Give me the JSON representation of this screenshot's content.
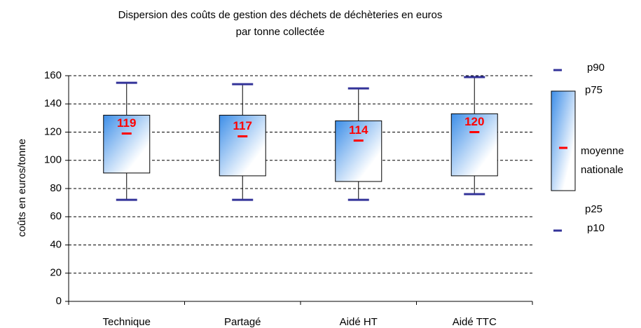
{
  "chart_data": {
    "type": "box",
    "title": [
      "Dispersion des coûts de gestion des déchets de déchèteries en euros",
      "par tonne collectée"
    ],
    "y_label": "coûts en euros/tonne",
    "categories": [
      "Technique",
      "Partagé",
      "Aidé HT",
      "Aidé TTC"
    ],
    "p10": [
      72,
      72,
      72,
      76
    ],
    "p25": [
      91,
      89,
      85,
      89
    ],
    "mean": [
      119,
      117,
      114,
      120
    ],
    "p75": [
      132,
      132,
      128,
      133
    ],
    "p90": [
      155,
      154,
      151,
      159
    ],
    "ylim": [
      0,
      160
    ],
    "yticks": [
      0,
      20,
      40,
      60,
      80,
      100,
      120,
      140,
      160
    ],
    "grid": true,
    "whisker_color": "#333399",
    "mean_color": "#ff0000",
    "box_color": "#3d8ee8",
    "legend": {
      "p90": "p90",
      "p75": "p75",
      "mean": [
        "moyenne",
        "nationale"
      ],
      "p25": "p25",
      "p10": "p10"
    }
  }
}
